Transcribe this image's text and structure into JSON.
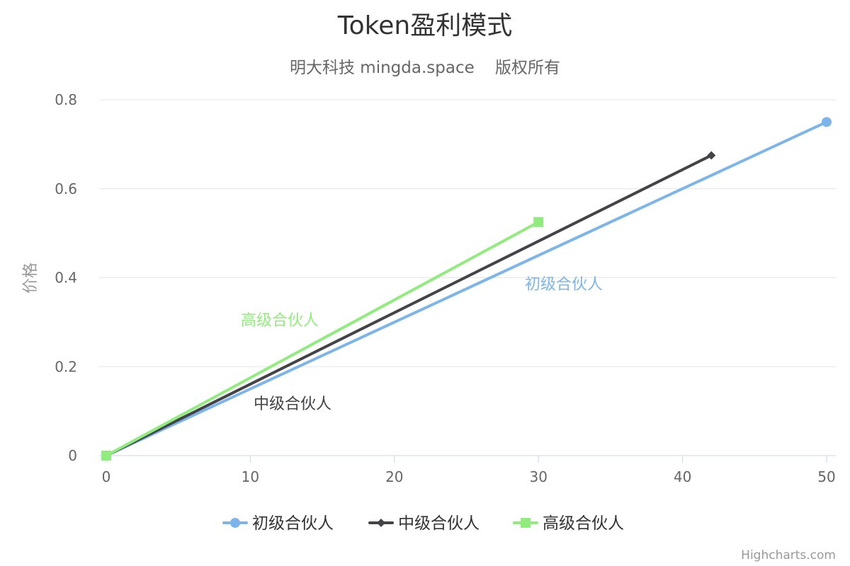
{
  "chart_data": {
    "type": "line",
    "title": "Token盈利模式",
    "subtitle": "明大科技 mingda.space    版权所有",
    "xlabel": "",
    "ylabel": "价格",
    "xlim": [
      0,
      50
    ],
    "ylim": [
      0,
      0.8
    ],
    "x_ticks": [
      0,
      10,
      20,
      30,
      40,
      50
    ],
    "y_ticks": [
      0,
      0.2,
      0.4,
      0.6,
      0.8
    ],
    "x_tick_labels": [
      "0",
      "10",
      "20",
      "30",
      "40",
      "50"
    ],
    "y_tick_labels": [
      "0",
      "0.2",
      "0.4",
      "0.6",
      "0.8"
    ],
    "grid": true,
    "legend_position": "bottom-center",
    "series": [
      {
        "name": "初级合伙人",
        "color": "#7cb5ec",
        "marker": "circle",
        "points": [
          [
            0,
            0
          ],
          [
            50,
            0.75
          ]
        ],
        "label": "初级合伙人"
      },
      {
        "name": "中级合伙人",
        "color": "#434348",
        "marker": "diamond",
        "points": [
          [
            0,
            0
          ],
          [
            42,
            0.675
          ]
        ],
        "label": "中级合伙人"
      },
      {
        "name": "高级合伙人",
        "color": "#90ed7d",
        "marker": "square",
        "points": [
          [
            0,
            0
          ],
          [
            30,
            0.525
          ]
        ],
        "label": "高级合伙人"
      }
    ]
  },
  "credits": "Highcharts.com"
}
